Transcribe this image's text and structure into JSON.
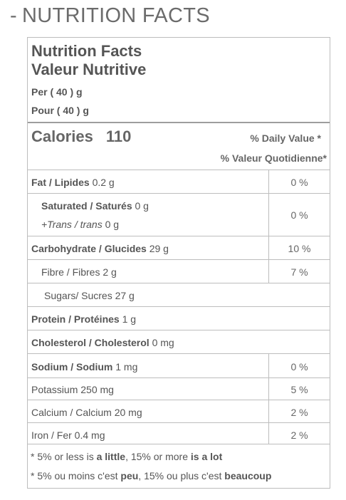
{
  "page": {
    "section_heading_dash": "-",
    "section_heading": "NUTRITION FACTS"
  },
  "label": {
    "title_en": "Nutrition Facts",
    "title_fr": "Valeur Nutritive",
    "per_en": "Per ( 40 ) g",
    "per_fr": "Pour ( 40 ) g",
    "calories_label": "Calories",
    "calories_value": "110",
    "dv_en": "% Daily Value *",
    "dv_fr": "% Valeur Quotidienne*"
  },
  "nutrients": {
    "fat": {
      "name": "Fat / Lipides",
      "amount": "0.2 g",
      "dv": "0 %"
    },
    "saturated": {
      "name": "Saturated / Saturés",
      "amount": "0 g",
      "dv": "0 %"
    },
    "trans": {
      "name": "+Trans / trans",
      "amount": "0 g"
    },
    "carbohydrate": {
      "name": "Carbohydrate / Glucides",
      "amount": "29 g",
      "dv": "10 %"
    },
    "fibre": {
      "text": "Fibre / Fibres 2 g",
      "dv": "7 %"
    },
    "sugars": {
      "text": "Sugars/ Sucres 27 g"
    },
    "protein": {
      "name": "Protein / Protéines",
      "amount": "1 g"
    },
    "cholesterol": {
      "name": "Cholesterol / Cholesterol",
      "amount": "0 mg"
    },
    "sodium": {
      "name": "Sodium / Sodium",
      "amount": "1 mg",
      "dv": "0 %"
    },
    "potassium": {
      "text": "Potassium 250 mg",
      "dv": "5 %"
    },
    "calcium": {
      "text": "Calcium / Calcium 20 mg",
      "dv": "2 %"
    },
    "iron": {
      "text": "Iron / Fer 0.4 mg",
      "dv": "2 %"
    }
  },
  "footnote": {
    "en_a": "* 5% or less is ",
    "en_b": "a little",
    "en_c": ", 15% or more ",
    "en_d": "is a lot",
    "fr_a": "* 5% ou moins c'est ",
    "fr_b": "peu",
    "fr_c": ", 15% ou plus c'est ",
    "fr_d": "beaucoup"
  }
}
